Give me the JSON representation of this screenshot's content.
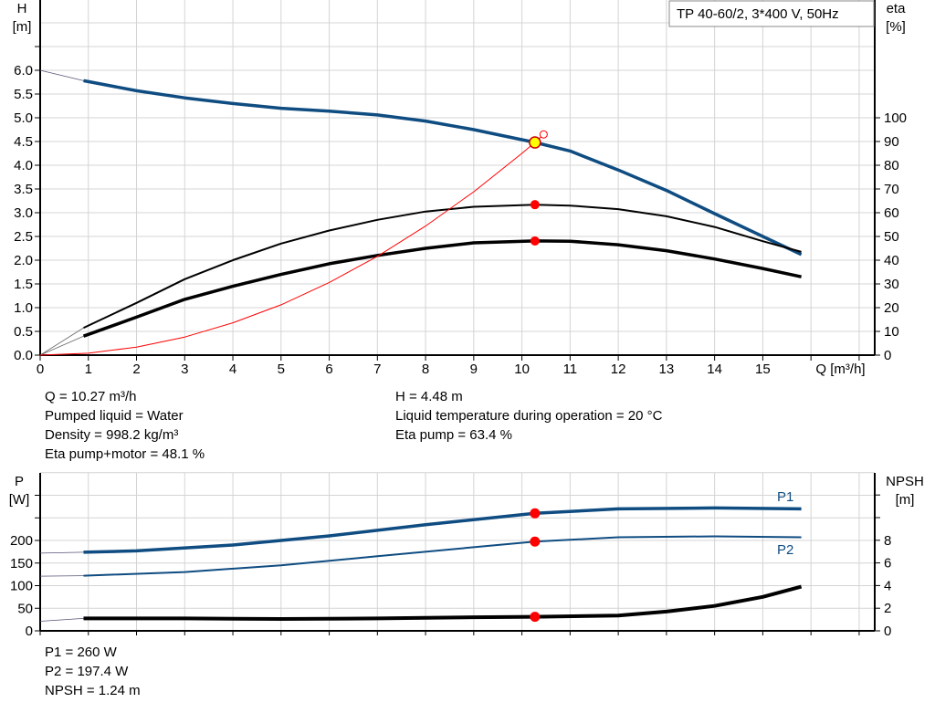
{
  "chart_data": [
    {
      "type": "line",
      "title": "TP 40-60/2, 3*400 V, 50Hz",
      "xlabel": "Q [m³/h]",
      "ylabel_left": [
        "H",
        "[m]"
      ],
      "ylabel_right": [
        "eta",
        "[%]"
      ],
      "xlim": [
        0,
        17.3
      ],
      "ylim_left": [
        0,
        7.5
      ],
      "ylim_right": [
        0,
        144
      ],
      "x_ticks": [
        "0",
        "1",
        "2",
        "3",
        "4",
        "5",
        "6",
        "7",
        "8",
        "9",
        "10",
        "11",
        "12",
        "13",
        "14",
        "15"
      ],
      "y_left_ticks": [
        "0.0",
        "0.5",
        "1.0",
        "1.5",
        "2.0",
        "2.5",
        "3.0",
        "3.5",
        "4.0",
        "4.5",
        "5.0",
        "5.5",
        "6.0"
      ],
      "y_right_ticks": [
        "0",
        "10",
        "20",
        "30",
        "40",
        "50",
        "60",
        "70",
        "80",
        "90",
        "100"
      ],
      "grid": true,
      "series": [
        {
          "id": "H",
          "axis": "left",
          "color": "#0f4c81",
          "x": [
            0.9,
            2,
            3,
            4,
            5,
            6,
            7,
            8,
            9,
            10.27,
            11,
            12,
            13,
            14,
            15,
            15.8
          ],
          "y": [
            5.78,
            5.57,
            5.42,
            5.3,
            5.2,
            5.14,
            5.06,
            4.93,
            4.75,
            4.48,
            4.3,
            3.9,
            3.47,
            2.98,
            2.5,
            2.12
          ],
          "extrapolated": {
            "x": [
              0,
              0.9
            ],
            "y": [
              6.0,
              5.78
            ]
          }
        },
        {
          "id": "eta_pump",
          "axis": "right",
          "color": "#000000",
          "x": [
            0.9,
            2,
            3,
            4,
            5,
            6,
            7,
            8,
            9,
            10.27,
            11,
            12,
            13,
            14,
            15,
            15.8
          ],
          "y": [
            11.5,
            22,
            32,
            40,
            47,
            52.5,
            57,
            60.5,
            62.5,
            63.4,
            63,
            61.5,
            58.5,
            54,
            48,
            43.5
          ]
        },
        {
          "id": "eta_pump_motor",
          "axis": "right",
          "color": "#000000",
          "x": [
            0.9,
            2,
            3,
            4,
            5,
            6,
            7,
            8,
            9,
            10.27,
            11,
            12,
            13,
            14,
            15,
            15.8
          ],
          "y": [
            8,
            16,
            23.5,
            29,
            34,
            38.5,
            42,
            45,
            47.3,
            48.1,
            48,
            46.5,
            44,
            40.5,
            36.5,
            33
          ]
        },
        {
          "id": "system_curve",
          "axis": "left",
          "color": "#ff0000",
          "x": [
            0,
            1,
            2,
            3,
            4,
            5,
            6,
            7,
            8,
            9,
            10,
            10.27,
            10.4
          ],
          "y": [
            0,
            0.04,
            0.17,
            0.38,
            0.68,
            1.06,
            1.53,
            2.08,
            2.72,
            3.44,
            4.25,
            4.48,
            4.6
          ]
        }
      ],
      "duty_point": {
        "Q": 10.27,
        "H": 4.48,
        "eta_pump": 63.4,
        "eta_pump_motor": 48.1
      }
    },
    {
      "type": "line",
      "ylabel_left": [
        "P",
        "[W]"
      ],
      "ylabel_right": [
        "NPSH",
        "[m]"
      ],
      "xlim": [
        0,
        17.3
      ],
      "ylim_left": [
        0,
        350
      ],
      "ylim_right": [
        0,
        14
      ],
      "y_left_ticks": [
        "0",
        "50",
        "100",
        "150",
        "200"
      ],
      "y_right_ticks": [
        "0",
        "2",
        "4",
        "6",
        "8"
      ],
      "grid": true,
      "series": [
        {
          "name": "P1",
          "axis": "left",
          "color": "#0f4c81",
          "x": [
            0.9,
            2,
            4,
            6,
            8,
            10.27,
            12,
            14,
            15.8
          ],
          "y": [
            174,
            177,
            190,
            210,
            235,
            260,
            270,
            272,
            270
          ],
          "extrapolated": {
            "x": [
              0,
              0.9
            ],
            "y": [
              172,
              174
            ]
          }
        },
        {
          "name": "P2",
          "axis": "left",
          "color": "#0f4c81",
          "x": [
            0.9,
            3,
            5,
            7,
            9,
            10.27,
            12,
            14,
            15.8
          ],
          "y": [
            122,
            130,
            145,
            165,
            185,
            197.4,
            207,
            209,
            207
          ],
          "extrapolated": {
            "x": [
              0,
              0.9
            ],
            "y": [
              121,
              122
            ]
          }
        },
        {
          "id": "NPSH",
          "axis": "right",
          "color": "#000000",
          "x": [
            0.9,
            3,
            5,
            7,
            9,
            10.27,
            12,
            13,
            14,
            15,
            15.8
          ],
          "y": [
            1.1,
            1.1,
            1.05,
            1.1,
            1.2,
            1.24,
            1.35,
            1.7,
            2.2,
            3.0,
            3.9
          ],
          "extrapolated": {
            "x": [
              0,
              0.9
            ],
            "y": [
              0.85,
              1.1
            ]
          }
        }
      ],
      "duty_point": {
        "Q": 10.27,
        "P1": 260,
        "P2": 197.4,
        "NPSH": 1.24
      }
    }
  ],
  "info_top_left": [
    "Q = 10.27 m³/h",
    "Pumped liquid = Water",
    "Density = 998.2 kg/m³",
    "Eta pump+motor = 48.1 %"
  ],
  "info_top_right": [
    "H = 4.48 m",
    "Liquid temperature during operation = 20 °C",
    "Eta pump = 63.4 %"
  ],
  "info_bottom": [
    "P1 = 260 W",
    "P2 = 197.4 W",
    "NPSH = 1.24 m"
  ]
}
